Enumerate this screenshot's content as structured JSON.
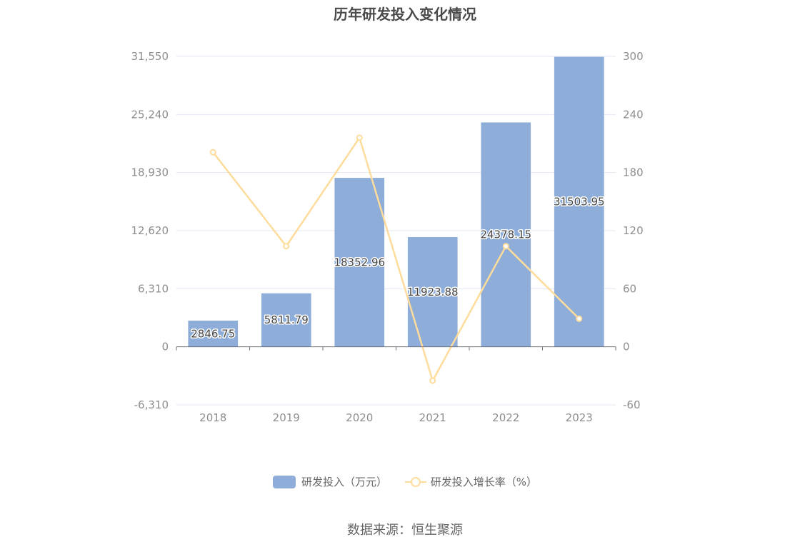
{
  "chart_data": {
    "type": "bar",
    "title": "历年研发投入变化情况",
    "categories": [
      "2018",
      "2019",
      "2020",
      "2021",
      "2022",
      "2023"
    ],
    "series": [
      {
        "name": "研发投入（万元）",
        "type": "bar",
        "axis": "left",
        "color": "#8eadd9",
        "values": [
          2846.75,
          5811.79,
          18352.96,
          11923.88,
          24378.15,
          31503.95
        ],
        "labels": [
          "2846.75",
          "5811.79",
          "18352.96",
          "11923.88",
          "24378.15",
          "31503.95"
        ]
      },
      {
        "name": "研发投入增长率（%）",
        "type": "line",
        "axis": "right",
        "color": "#fddc9c",
        "values": [
          201,
          104,
          216,
          -35,
          104,
          29
        ]
      }
    ],
    "y_left": {
      "ticks": [
        "-6,310",
        "0",
        "6,310",
        "12,620",
        "18,930",
        "25,240",
        "31,550"
      ],
      "ylim": [
        -6310,
        31550
      ]
    },
    "y_right": {
      "ticks": [
        "-60",
        "0",
        "60",
        "120",
        "180",
        "240",
        "300"
      ],
      "ylim": [
        -60,
        300
      ]
    },
    "grid": true,
    "legend_position": "bottom-center"
  },
  "source": "数据来源：恒生聚源"
}
